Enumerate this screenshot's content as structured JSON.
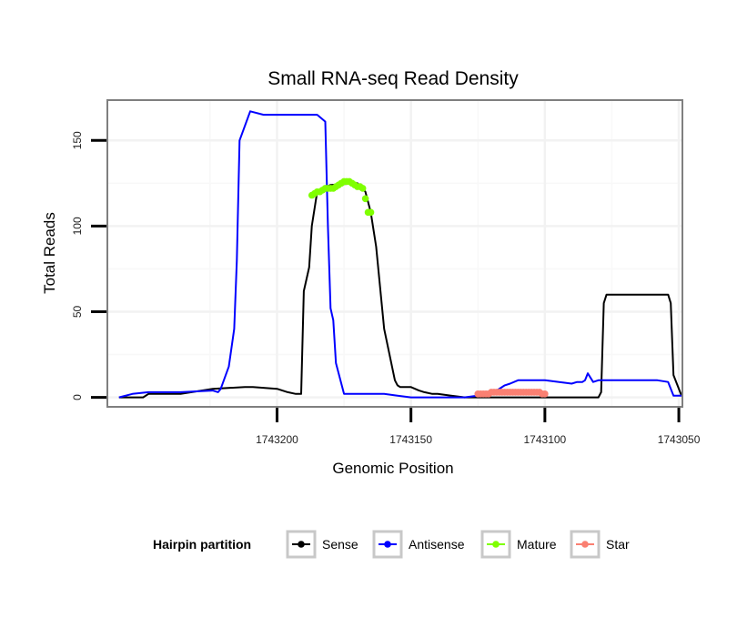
{
  "chart_data": {
    "type": "line",
    "title": "Small RNA-seq Read Density",
    "xlabel": "Genomic Position",
    "ylabel": "Total Reads",
    "x_reversed": true,
    "xlim": [
      1743049,
      1743263
    ],
    "ylim": [
      -5,
      173
    ],
    "x_ticks": [
      1743200,
      1743150,
      1743100,
      1743050
    ],
    "y_ticks": [
      0,
      50,
      100,
      150
    ],
    "grid": true,
    "legend": {
      "title": "Hairpin partition",
      "position": "bottom",
      "entries": [
        "Sense",
        "Antisense",
        "Mature",
        "Star"
      ]
    },
    "series": [
      {
        "name": "Sense",
        "color": "#000000",
        "marker": "line",
        "x": [
          1743259,
          1743250,
          1743248,
          1743236,
          1743224,
          1743212,
          1743209,
          1743200,
          1743196,
          1743193,
          1743192,
          1743191,
          1743190,
          1743188,
          1743187,
          1743185,
          1743180,
          1743170,
          1743167,
          1743165,
          1743163,
          1743160,
          1743156,
          1743155,
          1743154,
          1743152,
          1743150,
          1743147,
          1743145,
          1743142,
          1743140,
          1743135,
          1743130,
          1743125,
          1743120,
          1743110,
          1743100,
          1743090,
          1743080,
          1743079,
          1743078,
          1743077,
          1743060,
          1743054,
          1743053,
          1743052,
          1743050,
          1743049
        ],
        "y": [
          0,
          0,
          2,
          2,
          5,
          6,
          6,
          5,
          3,
          2,
          2,
          2,
          62,
          76,
          100,
          120,
          124,
          125,
          120,
          108,
          88,
          40,
          10,
          7,
          6,
          6,
          6,
          4,
          3,
          2,
          2,
          1,
          0,
          0,
          0,
          0,
          0,
          0,
          0,
          3,
          55,
          60,
          60,
          60,
          55,
          13,
          5,
          1
        ]
      },
      {
        "name": "Antisense",
        "color": "#0000ff",
        "marker": "line",
        "x": [
          1743259,
          1743254,
          1743248,
          1743236,
          1743224,
          1743222,
          1743221,
          1743218,
          1743216,
          1743215,
          1743214,
          1743210,
          1743205,
          1743200,
          1743195,
          1743190,
          1743185,
          1743182,
          1743181,
          1743180,
          1743179,
          1743178,
          1743175,
          1743170,
          1743165,
          1743160,
          1743155,
          1743150,
          1743145,
          1743140,
          1743130,
          1743120,
          1743118,
          1743115,
          1743113,
          1743110,
          1743100,
          1743090,
          1743088,
          1743086,
          1743085,
          1743084,
          1743082,
          1743080,
          1743070,
          1743060,
          1743058,
          1743054,
          1743052,
          1743050,
          1743049
        ],
        "y": [
          0,
          2,
          3,
          3,
          4,
          3,
          5,
          18,
          40,
          80,
          150,
          167,
          165,
          165,
          165,
          165,
          165,
          161,
          100,
          52,
          45,
          20,
          2,
          2,
          2,
          2,
          1,
          0,
          0,
          0,
          0,
          2,
          4,
          7,
          8,
          10,
          10,
          8,
          9,
          9,
          10,
          14,
          9,
          10,
          10,
          10,
          10,
          9,
          1,
          1,
          1
        ]
      },
      {
        "name": "Mature",
        "color": "#7fff00",
        "marker": "point",
        "x": [
          1743187,
          1743186,
          1743185,
          1743184,
          1743183,
          1743182,
          1743181,
          1743180,
          1743179,
          1743178,
          1743177,
          1743176,
          1743175,
          1743174,
          1743173,
          1743172,
          1743171,
          1743170,
          1743169,
          1743168,
          1743167,
          1743166,
          1743165
        ],
        "y": [
          118,
          119,
          120,
          120,
          121,
          122,
          122,
          122,
          122,
          123,
          124,
          125,
          126,
          126,
          126,
          125,
          124,
          123,
          123,
          122,
          116,
          108,
          108
        ]
      },
      {
        "name": "Star",
        "color": "#fa8072",
        "marker": "point",
        "x": [
          1743125,
          1743124,
          1743123,
          1743122,
          1743121,
          1743120,
          1743119,
          1743118,
          1743117,
          1743116,
          1743115,
          1743114,
          1743113,
          1743112,
          1743111,
          1743110,
          1743109,
          1743108,
          1743107,
          1743106,
          1743105,
          1743104,
          1743103,
          1743102,
          1743101,
          1743100
        ],
        "y": [
          2,
          2,
          2,
          2,
          2,
          3,
          3,
          3,
          3,
          3,
          3,
          3,
          3,
          3,
          3,
          3,
          3,
          3,
          3,
          3,
          3,
          3,
          3,
          3,
          2,
          2
        ]
      }
    ]
  }
}
